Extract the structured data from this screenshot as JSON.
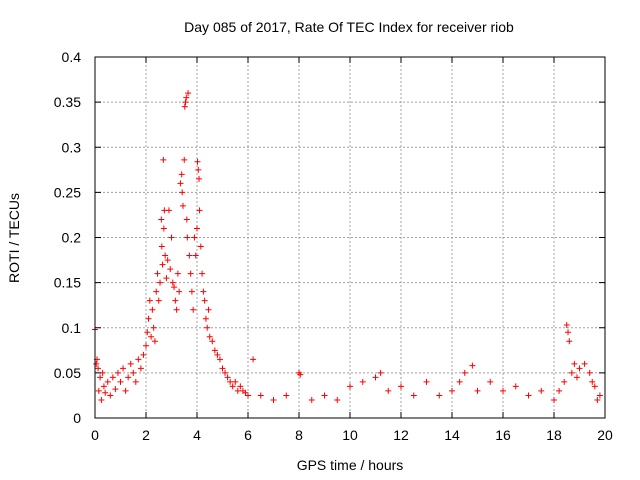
{
  "chart_data": {
    "type": "scatter",
    "title": "Day 085 of 2017, Rate Of TEC Index for receiver riob",
    "xlabel": "GPS time / hours",
    "ylabel": "ROTI / TECUs",
    "xlim": [
      0,
      20
    ],
    "ylim": [
      0,
      0.4
    ],
    "x_ticks": [
      0,
      2,
      4,
      6,
      8,
      10,
      12,
      14,
      16,
      18,
      20
    ],
    "y_ticks": [
      0,
      0.05,
      0.1,
      0.15,
      0.2,
      0.25,
      0.3,
      0.35,
      0.4
    ],
    "x_tick_labels": [
      "0",
      "2",
      "4",
      "6",
      "8",
      "10",
      "12",
      "14",
      "16",
      "18",
      "20"
    ],
    "y_tick_labels": [
      "0",
      "0.05",
      "0.1",
      "0.15",
      "0.2",
      "0.25",
      "0.3",
      "0.35",
      "0.4"
    ],
    "grid": true,
    "marker": "+",
    "marker_color": "#ff0000",
    "series": [
      {
        "name": "ROTI",
        "points": [
          [
            0.0,
            0.098
          ],
          [
            0.05,
            0.06
          ],
          [
            0.08,
            0.065
          ],
          [
            0.12,
            0.055
          ],
          [
            0.15,
            0.03
          ],
          [
            0.2,
            0.045
          ],
          [
            0.25,
            0.02
          ],
          [
            0.3,
            0.05
          ],
          [
            0.35,
            0.035
          ],
          [
            0.4,
            0.028
          ],
          [
            0.5,
            0.04
          ],
          [
            0.6,
            0.025
          ],
          [
            0.7,
            0.045
          ],
          [
            0.8,
            0.032
          ],
          [
            0.9,
            0.05
          ],
          [
            1.0,
            0.04
          ],
          [
            1.1,
            0.055
          ],
          [
            1.2,
            0.03
          ],
          [
            1.3,
            0.045
          ],
          [
            1.4,
            0.06
          ],
          [
            1.5,
            0.05
          ],
          [
            1.6,
            0.04
          ],
          [
            1.7,
            0.065
          ],
          [
            1.8,
            0.055
          ],
          [
            1.9,
            0.07
          ],
          [
            2.0,
            0.08
          ],
          [
            2.05,
            0.095
          ],
          [
            2.1,
            0.11
          ],
          [
            2.15,
            0.13
          ],
          [
            2.2,
            0.09
          ],
          [
            2.25,
            0.12
          ],
          [
            2.3,
            0.1
          ],
          [
            2.35,
            0.085
          ],
          [
            2.4,
            0.14
          ],
          [
            2.45,
            0.16
          ],
          [
            2.5,
            0.13
          ],
          [
            2.55,
            0.15
          ],
          [
            2.6,
            0.22
          ],
          [
            2.62,
            0.19
          ],
          [
            2.65,
            0.17
          ],
          [
            2.68,
            0.286
          ],
          [
            2.7,
            0.21
          ],
          [
            2.72,
            0.23
          ],
          [
            2.75,
            0.18
          ],
          [
            2.8,
            0.155
          ],
          [
            2.85,
            0.175
          ],
          [
            2.9,
            0.23
          ],
          [
            2.95,
            0.165
          ],
          [
            3.0,
            0.2
          ],
          [
            3.05,
            0.15
          ],
          [
            3.1,
            0.145
          ],
          [
            3.15,
            0.13
          ],
          [
            3.2,
            0.12
          ],
          [
            3.25,
            0.16
          ],
          [
            3.3,
            0.14
          ],
          [
            3.35,
            0.26
          ],
          [
            3.4,
            0.27
          ],
          [
            3.42,
            0.25
          ],
          [
            3.45,
            0.235
          ],
          [
            3.5,
            0.286
          ],
          [
            3.52,
            0.345
          ],
          [
            3.55,
            0.35
          ],
          [
            3.58,
            0.355
          ],
          [
            3.6,
            0.22
          ],
          [
            3.62,
            0.2
          ],
          [
            3.65,
            0.36
          ],
          [
            3.7,
            0.18
          ],
          [
            3.75,
            0.16
          ],
          [
            3.8,
            0.14
          ],
          [
            3.85,
            0.12
          ],
          [
            3.9,
            0.2
          ],
          [
            3.95,
            0.18
          ],
          [
            4.0,
            0.21
          ],
          [
            4.02,
            0.284
          ],
          [
            4.05,
            0.275
          ],
          [
            4.08,
            0.265
          ],
          [
            4.1,
            0.23
          ],
          [
            4.15,
            0.19
          ],
          [
            4.2,
            0.16
          ],
          [
            4.25,
            0.14
          ],
          [
            4.3,
            0.13
          ],
          [
            4.35,
            0.11
          ],
          [
            4.4,
            0.1
          ],
          [
            4.45,
            0.12
          ],
          [
            4.5,
            0.09
          ],
          [
            4.6,
            0.085
          ],
          [
            4.7,
            0.075
          ],
          [
            4.8,
            0.07
          ],
          [
            4.9,
            0.065
          ],
          [
            5.0,
            0.055
          ],
          [
            5.1,
            0.05
          ],
          [
            5.2,
            0.045
          ],
          [
            5.3,
            0.04
          ],
          [
            5.4,
            0.035
          ],
          [
            5.5,
            0.04
          ],
          [
            5.6,
            0.03
          ],
          [
            5.7,
            0.035
          ],
          [
            5.8,
            0.03
          ],
          [
            5.9,
            0.028
          ],
          [
            6.0,
            0.025
          ],
          [
            6.2,
            0.065
          ],
          [
            6.5,
            0.025
          ],
          [
            7.0,
            0.02
          ],
          [
            7.5,
            0.025
          ],
          [
            8.0,
            0.05
          ],
          [
            8.05,
            0.048
          ],
          [
            8.5,
            0.02
          ],
          [
            9.0,
            0.025
          ],
          [
            9.5,
            0.02
          ],
          [
            10.0,
            0.035
          ],
          [
            10.5,
            0.04
          ],
          [
            11.0,
            0.045
          ],
          [
            11.2,
            0.05
          ],
          [
            11.5,
            0.03
          ],
          [
            12.0,
            0.035
          ],
          [
            12.5,
            0.025
          ],
          [
            13.0,
            0.04
          ],
          [
            13.5,
            0.025
          ],
          [
            14.0,
            0.03
          ],
          [
            14.3,
            0.04
          ],
          [
            14.5,
            0.05
          ],
          [
            14.8,
            0.058
          ],
          [
            15.0,
            0.03
          ],
          [
            15.5,
            0.04
          ],
          [
            16.0,
            0.03
          ],
          [
            16.5,
            0.035
          ],
          [
            17.0,
            0.025
          ],
          [
            17.5,
            0.03
          ],
          [
            18.0,
            0.02
          ],
          [
            18.2,
            0.03
          ],
          [
            18.4,
            0.04
          ],
          [
            18.5,
            0.103
          ],
          [
            18.55,
            0.095
          ],
          [
            18.6,
            0.085
          ],
          [
            18.7,
            0.05
          ],
          [
            18.8,
            0.06
          ],
          [
            18.9,
            0.045
          ],
          [
            19.0,
            0.055
          ],
          [
            19.2,
            0.06
          ],
          [
            19.4,
            0.05
          ],
          [
            19.5,
            0.04
          ],
          [
            19.6,
            0.035
          ],
          [
            19.7,
            0.02
          ],
          [
            19.8,
            0.025
          ]
        ]
      }
    ]
  }
}
